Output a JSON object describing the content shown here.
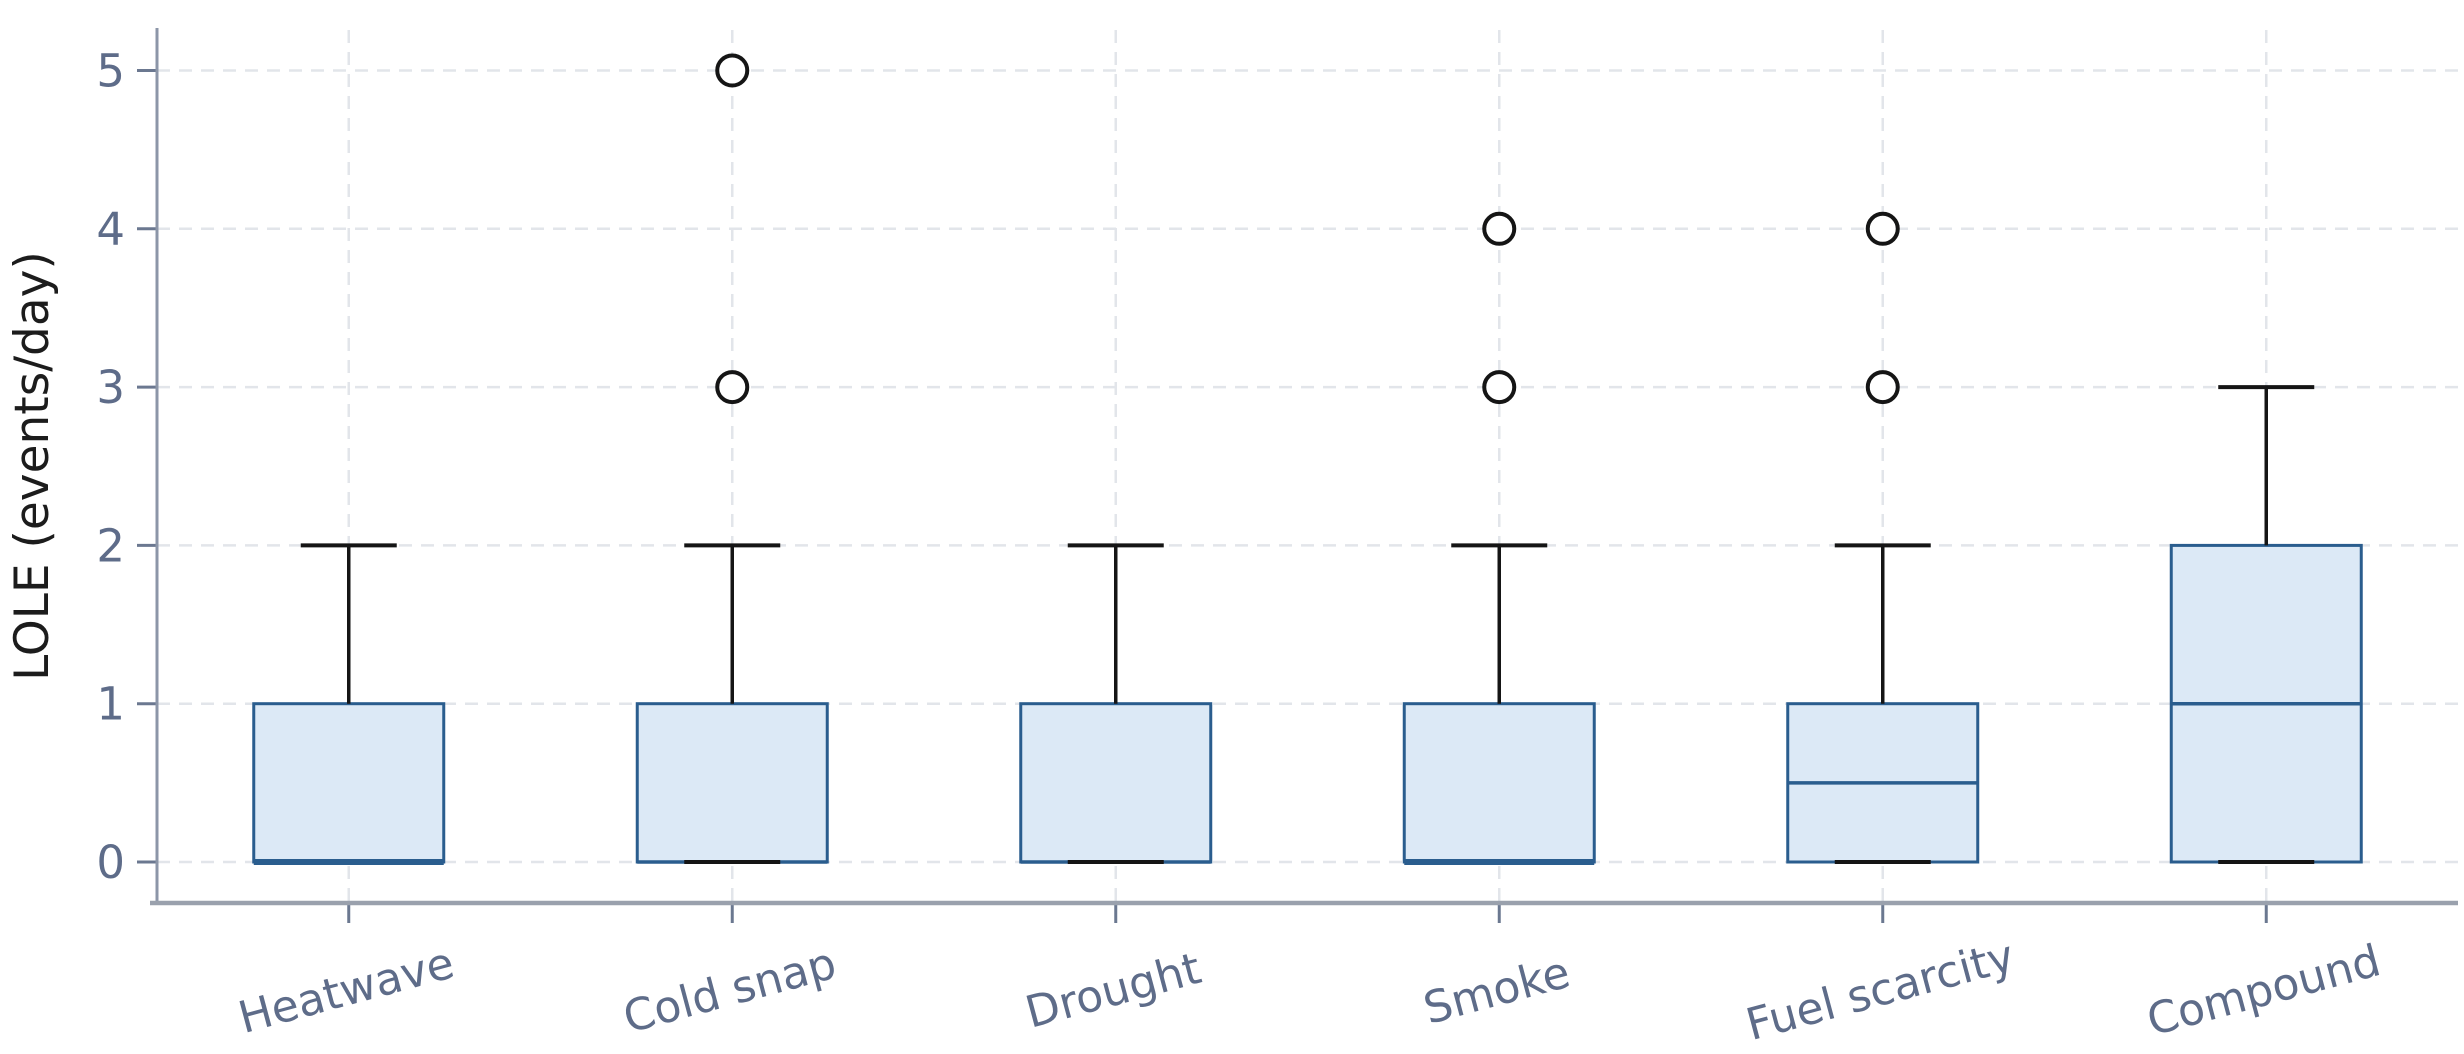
{
  "chart_data": {
    "type": "box",
    "title": "",
    "xlabel": "",
    "ylabel": "LOLE (events/day)",
    "categories": [
      "Heatwave",
      "Cold snap",
      "Drought",
      "Smoke",
      "Fuel scarcity",
      "Compound"
    ],
    "yticks": [
      0,
      1,
      2,
      3,
      4,
      5
    ],
    "ylim": [
      -0.3,
      5.3
    ],
    "grid": {
      "horizontal": true,
      "vertical": true,
      "style": "dashed"
    },
    "legend": "none",
    "xtick_rotation_deg": 15,
    "series": [
      {
        "label": "Heatwave",
        "whislo": 0,
        "q1": 0,
        "med": 0,
        "q3": 1,
        "whishi": 2,
        "fliers": [],
        "lower_cap_visible": false
      },
      {
        "label": "Cold snap",
        "whislo": 0,
        "q1": 0,
        "med": 0,
        "q3": 1,
        "whishi": 2,
        "fliers": [
          3,
          5
        ],
        "lower_cap_visible": true
      },
      {
        "label": "Drought",
        "whislo": 0,
        "q1": 0,
        "med": 0,
        "q3": 1,
        "whishi": 2,
        "fliers": [],
        "lower_cap_visible": true
      },
      {
        "label": "Smoke",
        "whislo": 0,
        "q1": 0,
        "med": 0,
        "q3": 1,
        "whishi": 2,
        "fliers": [
          3,
          4
        ],
        "lower_cap_visible": false
      },
      {
        "label": "Fuel scarcity",
        "whislo": 0,
        "q1": 0,
        "med": 0.5,
        "q3": 1,
        "whishi": 2,
        "fliers": [
          3,
          4
        ],
        "lower_cap_visible": true
      },
      {
        "label": "Compound",
        "whislo": 0,
        "q1": 0,
        "med": 1,
        "q3": 2,
        "whishi": 3,
        "fliers": [],
        "lower_cap_visible": true
      }
    ],
    "colors": {
      "box_edge": "#2a5d8e",
      "box_fill": "#dce9f6",
      "median": "#2a5d8e",
      "whisker": "#151515",
      "flier_edge": "#151515",
      "flier_fill": "#ffffff",
      "grid": "#e2e5ea",
      "x_axis_line": "#9aa1ad",
      "y_axis_line": "#8c96a8",
      "tick_mark": "#6b7890",
      "tick_label": "#5e6c89",
      "axis_title": "#1c1c1c",
      "background": "#ffffff"
    }
  }
}
